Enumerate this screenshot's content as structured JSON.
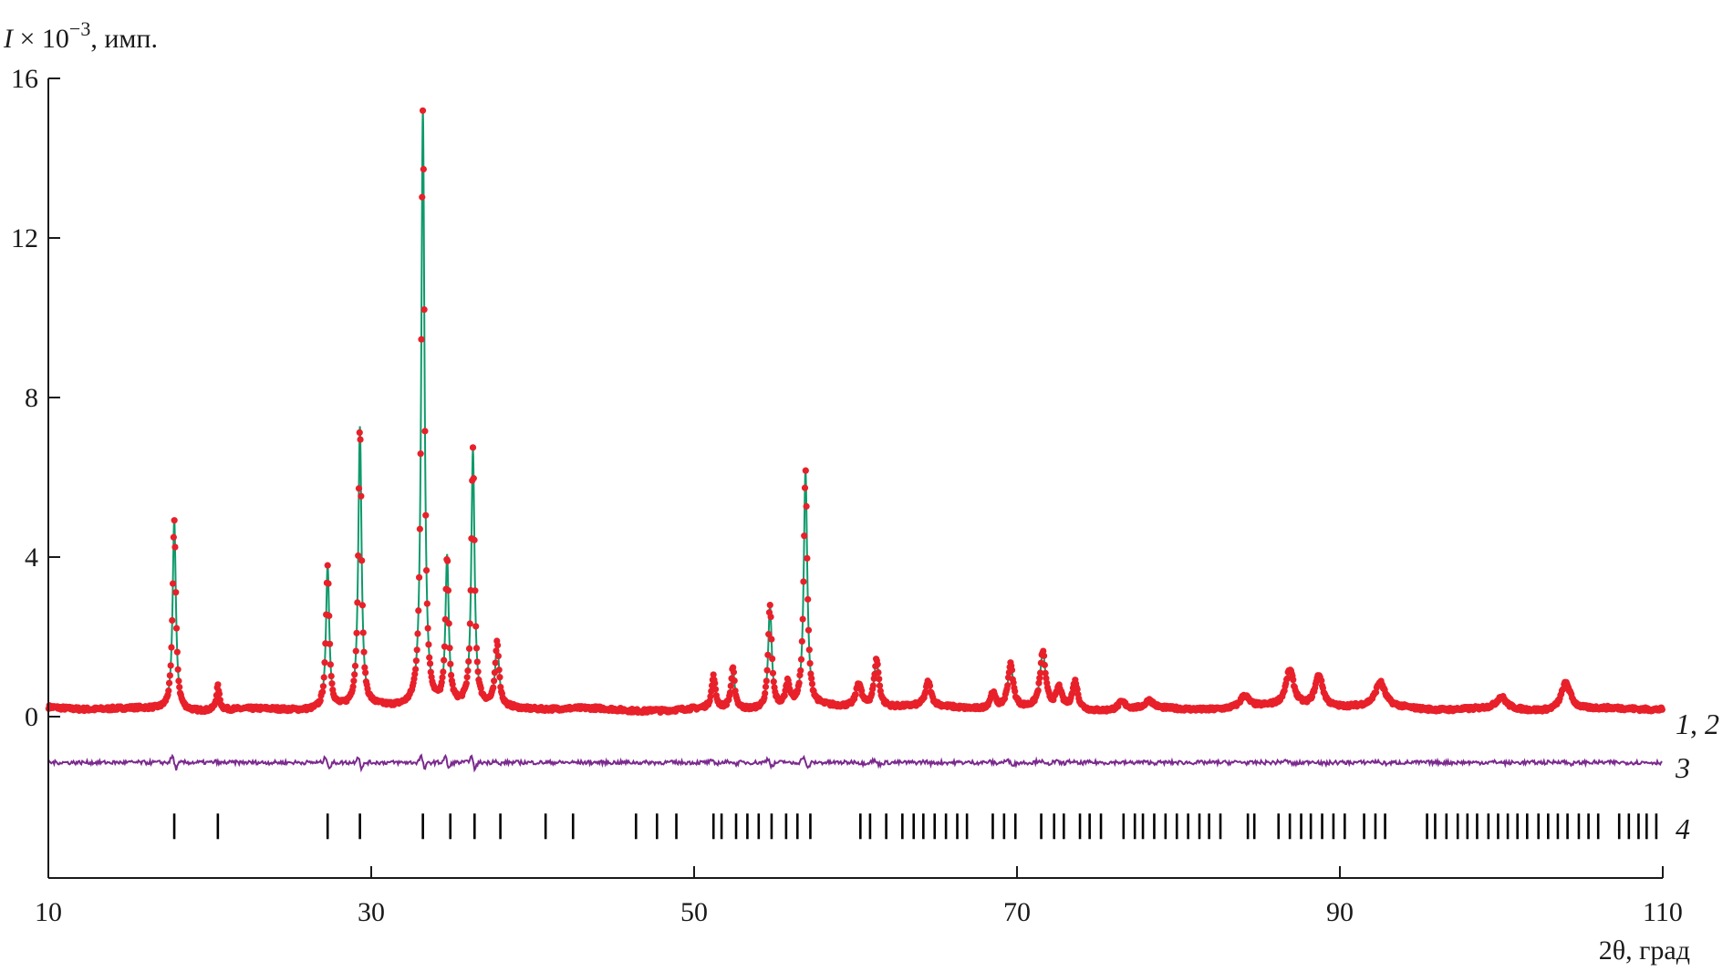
{
  "chart_data": {
    "type": "line",
    "ylabel": {
      "base": "I",
      "mid": " × 10",
      "exp": "−3",
      "tail": ", имп."
    },
    "xlabel": "2θ, град",
    "xlim": [
      10,
      110
    ],
    "ylim": [
      -4.0,
      16
    ],
    "x_ticks": [
      10,
      30,
      50,
      70,
      90,
      110
    ],
    "x_tick_labels": [
      "10",
      "30",
      "50",
      "70",
      "90",
      "110"
    ],
    "y_ticks": [
      0,
      4,
      8,
      12,
      16
    ],
    "y_tick_labels": [
      "0",
      "4",
      "8",
      "12",
      "16"
    ],
    "background": 0.2,
    "diff_offset": -1.15,
    "tick_row_y": -2.75,
    "colors": {
      "observed": "#e8202a",
      "calculated": "#0e9a6a",
      "difference": "#7b2a8e",
      "bragg": "#000000"
    },
    "series": [
      {
        "label": "1",
        "role": "observed"
      },
      {
        "label": "2",
        "role": "calculated"
      },
      {
        "label": "3",
        "role": "difference"
      },
      {
        "label": "4",
        "role": "bragg positions"
      }
    ],
    "end_labels": {
      "main": {
        "n1": "1",
        "sep": ", ",
        "n2": "2"
      },
      "diff": "3",
      "bragg": "4"
    },
    "peaks": [
      {
        "x": 17.8,
        "h": 4.8,
        "w": 0.12
      },
      {
        "x": 20.5,
        "h": 0.6,
        "w": 0.12
      },
      {
        "x": 27.3,
        "h": 3.6,
        "w": 0.12
      },
      {
        "x": 29.3,
        "h": 7.0,
        "w": 0.12
      },
      {
        "x": 33.2,
        "h": 15.0,
        "w": 0.12
      },
      {
        "x": 34.7,
        "h": 3.7,
        "w": 0.12
      },
      {
        "x": 36.3,
        "h": 6.4,
        "w": 0.12
      },
      {
        "x": 37.8,
        "h": 1.6,
        "w": 0.14
      },
      {
        "x": 47.5,
        "h": 0.05,
        "w": 0.12
      },
      {
        "x": 51.2,
        "h": 0.8,
        "w": 0.14
      },
      {
        "x": 52.4,
        "h": 1.0,
        "w": 0.14
      },
      {
        "x": 54.7,
        "h": 2.6,
        "w": 0.13
      },
      {
        "x": 55.8,
        "h": 0.6,
        "w": 0.16
      },
      {
        "x": 56.9,
        "h": 5.9,
        "w": 0.13
      },
      {
        "x": 60.2,
        "h": 0.6,
        "w": 0.2
      },
      {
        "x": 61.3,
        "h": 1.2,
        "w": 0.18
      },
      {
        "x": 64.5,
        "h": 0.6,
        "w": 0.2
      },
      {
        "x": 68.5,
        "h": 0.4,
        "w": 0.2
      },
      {
        "x": 69.6,
        "h": 1.1,
        "w": 0.2
      },
      {
        "x": 71.6,
        "h": 1.4,
        "w": 0.2
      },
      {
        "x": 72.6,
        "h": 0.5,
        "w": 0.2
      },
      {
        "x": 73.6,
        "h": 0.7,
        "w": 0.2
      },
      {
        "x": 76.5,
        "h": 0.2,
        "w": 0.3
      },
      {
        "x": 78.2,
        "h": 0.2,
        "w": 0.3
      },
      {
        "x": 84.1,
        "h": 0.3,
        "w": 0.3
      },
      {
        "x": 86.9,
        "h": 0.9,
        "w": 0.3
      },
      {
        "x": 88.7,
        "h": 0.8,
        "w": 0.3
      },
      {
        "x": 92.5,
        "h": 0.6,
        "w": 0.35
      },
      {
        "x": 100.0,
        "h": 0.3,
        "w": 0.35
      },
      {
        "x": 104.0,
        "h": 0.7,
        "w": 0.35
      }
    ],
    "bragg_ticks": [
      17.8,
      20.5,
      27.3,
      29.3,
      33.2,
      34.9,
      36.4,
      38.0,
      40.8,
      42.5,
      46.4,
      47.7,
      48.9,
      51.2,
      51.7,
      52.6,
      53.3,
      54.0,
      54.8,
      55.7,
      56.4,
      57.2,
      60.3,
      60.9,
      61.9,
      62.9,
      63.6,
      64.2,
      64.9,
      65.6,
      66.3,
      66.9,
      68.5,
      69.2,
      69.9,
      71.5,
      72.3,
      72.9,
      73.9,
      74.5,
      75.2,
      76.6,
      77.3,
      77.8,
      78.5,
      79.2,
      79.9,
      80.6,
      81.3,
      81.9,
      82.6,
      84.3,
      84.7,
      86.2,
      86.9,
      87.6,
      88.2,
      88.9,
      89.6,
      90.3,
      91.5,
      92.2,
      92.8,
      95.4,
      95.9,
      96.6,
      97.3,
      97.9,
      98.5,
      99.2,
      99.8,
      100.4,
      101.0,
      101.6,
      102.3,
      102.9,
      103.5,
      104.1,
      104.8,
      105.4,
      106.0,
      107.3,
      107.9,
      108.5,
      109.0,
      109.6
    ]
  }
}
